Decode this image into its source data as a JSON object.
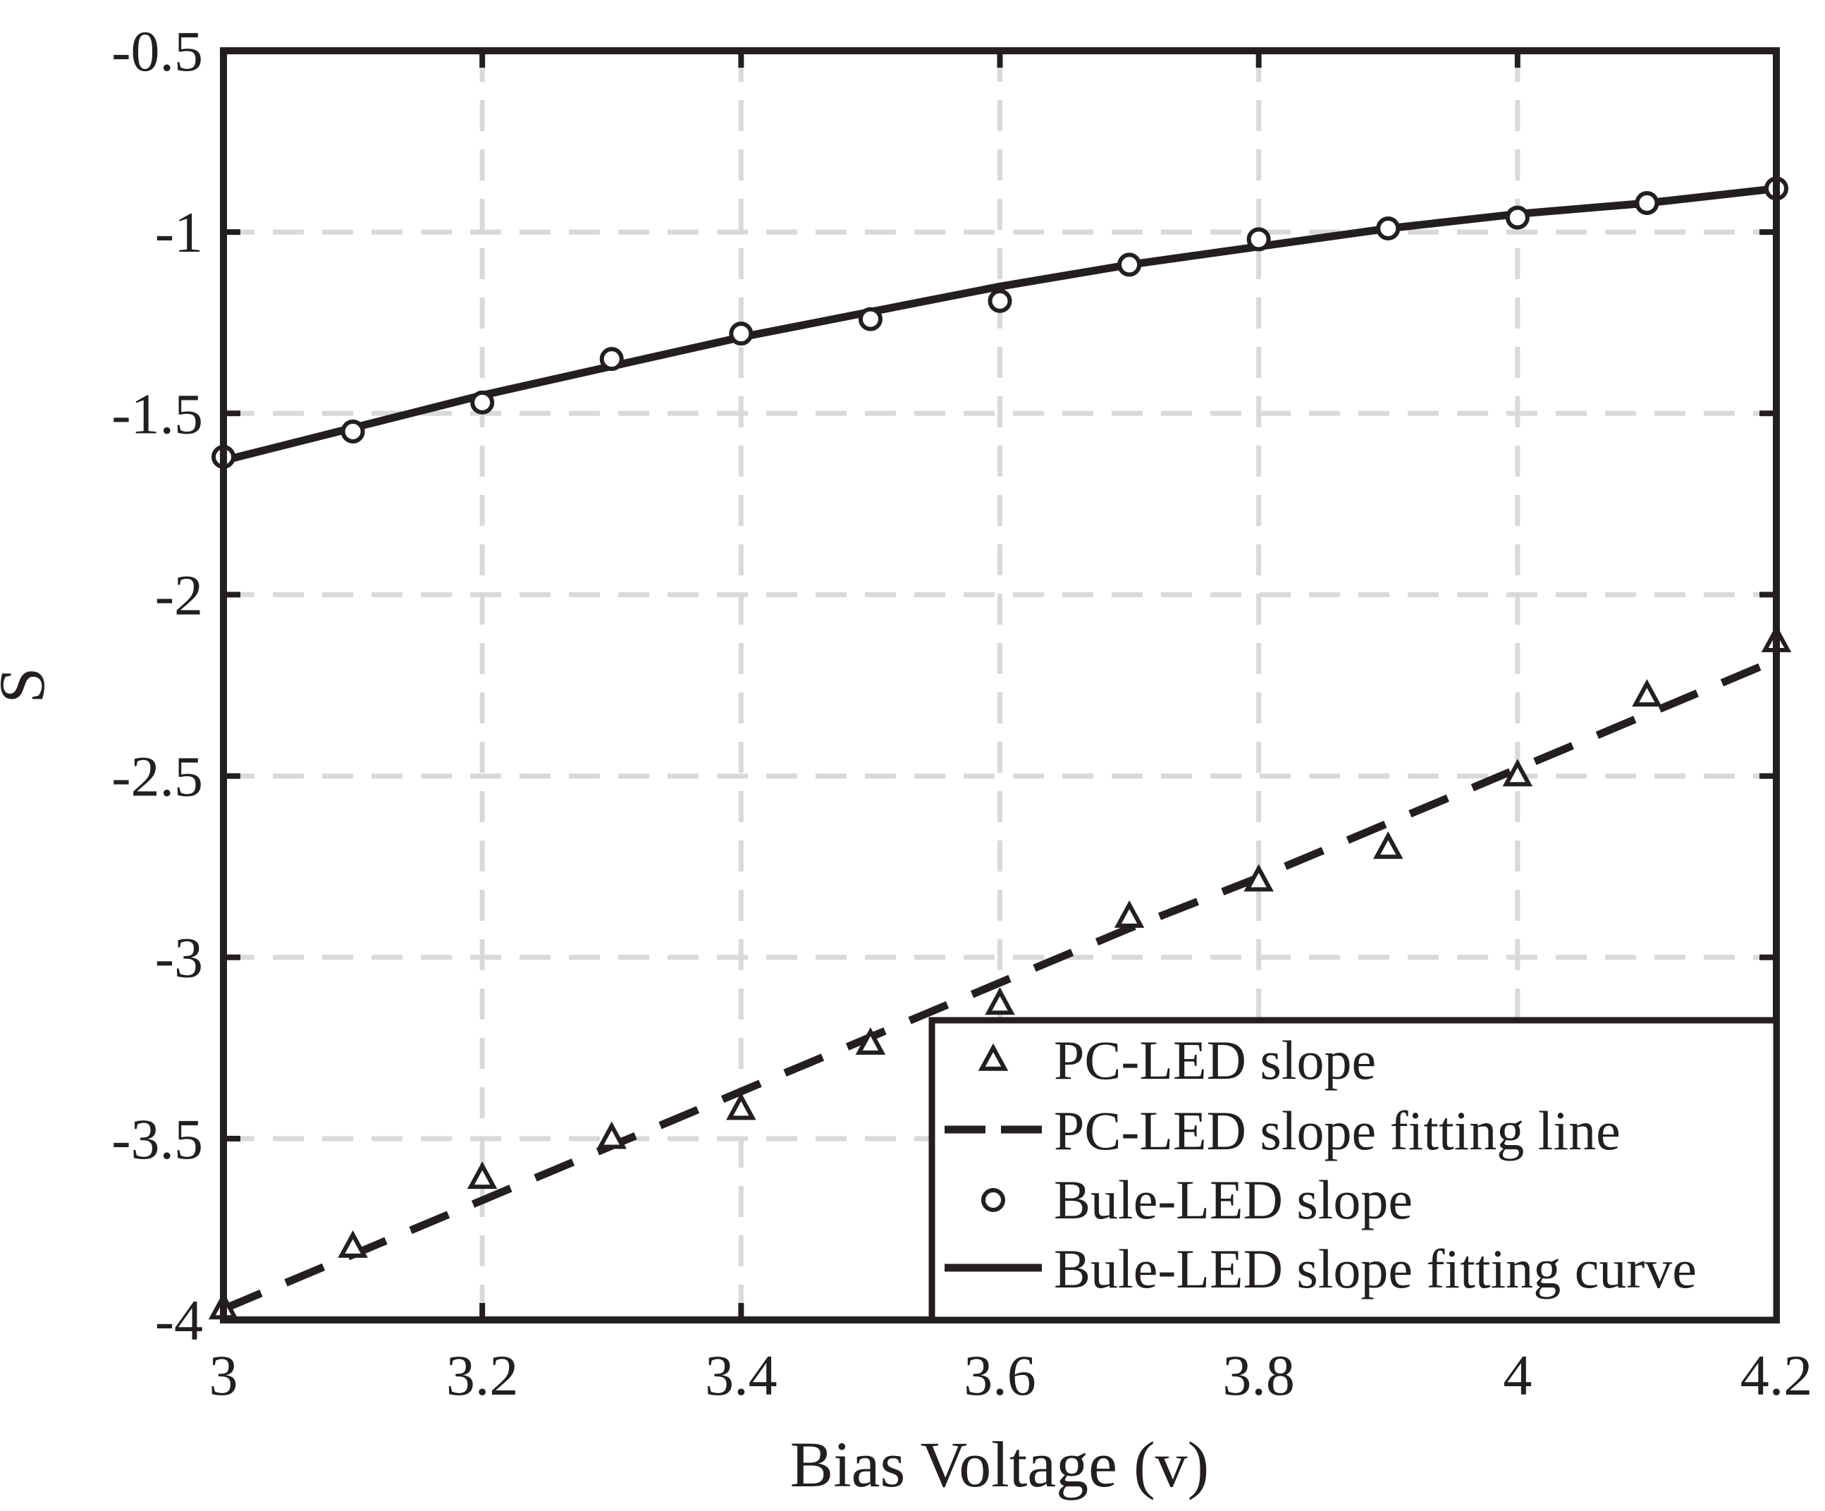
{
  "chart_data": {
    "type": "line",
    "xlabel": "Bias Voltage (v)",
    "ylabel": "S",
    "xlim": [
      3,
      4.2
    ],
    "ylim": [
      -4,
      -0.5
    ],
    "grid": true,
    "legend_position": "bottom-right",
    "x_ticks": [
      "3",
      "3.2",
      "3.4",
      "3.6",
      "3.8",
      "4",
      "4.2"
    ],
    "y_ticks": [
      "-4",
      "-3.5",
      "-3",
      "-2.5",
      "-2",
      "-1.5",
      "-1",
      "-0.5"
    ],
    "x": [
      3.0,
      3.1,
      3.2,
      3.3,
      3.4,
      3.5,
      3.6,
      3.7,
      3.8,
      3.9,
      4.0,
      4.1,
      4.2
    ],
    "series": [
      {
        "name": "PC-LED slope",
        "style": "triangle-markers",
        "values": [
          -3.97,
          -3.8,
          -3.61,
          -3.5,
          -3.42,
          -3.24,
          -3.13,
          -2.89,
          -2.79,
          -2.7,
          -2.5,
          -2.28,
          -2.13
        ]
      },
      {
        "name": "PC-LED slope fitting line",
        "style": "dashed-line",
        "values": [
          -3.97,
          -3.82,
          -3.67,
          -3.52,
          -3.37,
          -3.22,
          -3.07,
          -2.92,
          -2.78,
          -2.63,
          -2.48,
          -2.33,
          -2.18
        ]
      },
      {
        "name": "Bule-LED slope",
        "style": "circle-markers",
        "values": [
          -1.62,
          -1.55,
          -1.47,
          -1.35,
          -1.28,
          -1.24,
          -1.19,
          -1.09,
          -1.02,
          -0.99,
          -0.96,
          -0.92,
          -0.88
        ]
      },
      {
        "name": "Bule-LED slope fitting curve",
        "style": "solid-line",
        "values": [
          -1.63,
          -1.54,
          -1.45,
          -1.37,
          -1.29,
          -1.22,
          -1.15,
          -1.09,
          -1.04,
          -0.99,
          -0.95,
          -0.92,
          -0.88
        ]
      }
    ],
    "colors": {
      "ink": "#231f20",
      "grid": "#d9d9d9"
    }
  }
}
